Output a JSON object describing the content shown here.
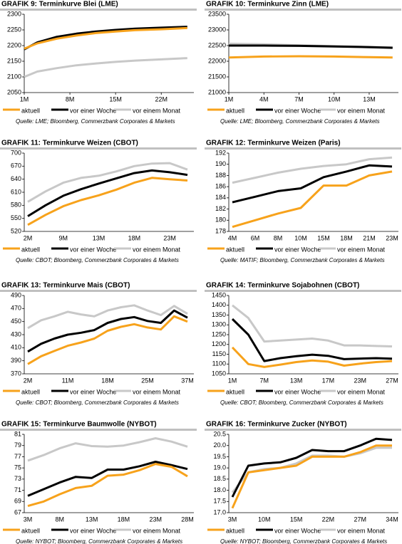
{
  "chart_data": [
    {
      "type": "line",
      "title": "GRAFIK 9: Terminkurve Blei (LME)",
      "source": "Quelle: LME; Bloomberg, Commerzbank Corporates & Markets",
      "x": [
        1,
        3,
        6,
        9,
        12,
        15,
        18,
        22,
        26
      ],
      "xlim": [
        1,
        27
      ],
      "xticks": [
        {
          "value": 1,
          "label": "1M"
        },
        {
          "value": 8,
          "label": "8M"
        },
        {
          "value": 15,
          "label": "15M"
        },
        {
          "value": 22,
          "label": "22M"
        }
      ],
      "ylim": [
        2050,
        2300
      ],
      "yticks": [
        2050,
        2100,
        2150,
        2200,
        2250,
        2300
      ],
      "series": [
        {
          "name": "aktuell",
          "color": "#f7a21b",
          "values": [
            2190,
            2207,
            2222,
            2232,
            2240,
            2245,
            2249,
            2252,
            2256
          ]
        },
        {
          "name": "vor einer Woche",
          "color": "#000000",
          "values": [
            2188,
            2210,
            2228,
            2238,
            2245,
            2250,
            2254,
            2257,
            2260
          ]
        },
        {
          "name": "vor einem Monat",
          "color": "#c8c8c8",
          "values": [
            2100,
            2117,
            2128,
            2137,
            2143,
            2148,
            2152,
            2156,
            2160
          ]
        }
      ]
    },
    {
      "type": "line",
      "title": "GRAFIK 10: Terminkurve Zinn (LME)",
      "source": "Quelle: LME; Bloomberg, Commerzbank Corporates & Markets",
      "x": [
        1,
        4,
        7,
        10,
        13,
        15
      ],
      "xlim": [
        1,
        15.5
      ],
      "xticks": [
        {
          "value": 1,
          "label": "1M"
        },
        {
          "value": 4,
          "label": "4M"
        },
        {
          "value": 7,
          "label": "7M"
        },
        {
          "value": 10,
          "label": "10M"
        },
        {
          "value": 13,
          "label": "13M"
        }
      ],
      "ylim": [
        21000,
        23500
      ],
      "yticks": [
        21000,
        21500,
        22000,
        22500,
        23000,
        23500
      ],
      "series": [
        {
          "name": "aktuell",
          "color": "#f7a21b",
          "values": [
            22120,
            22150,
            22160,
            22150,
            22130,
            22120
          ]
        },
        {
          "name": "vor einer Woche",
          "color": "#000000",
          "values": [
            22500,
            22500,
            22490,
            22470,
            22450,
            22430
          ]
        },
        {
          "name": "vor einem Monat",
          "color": "#c8c8c8",
          "values": [
            22560,
            22540,
            22510,
            22480,
            22460,
            22440
          ]
        }
      ]
    },
    {
      "type": "line",
      "title": "GRAFIK 11: Terminkurve Weizen (CBOT)",
      "source": "Quelle: CBOT; Bloomberg, Commerzbank Corporates & Markets",
      "categories": [
        "2M",
        null,
        "9M",
        null,
        "13M",
        null,
        "18M",
        null,
        "23M",
        null
      ],
      "ylim": [
        520,
        700
      ],
      "yticks": [
        520,
        550,
        580,
        610,
        640,
        670,
        700
      ],
      "series": [
        {
          "name": "aktuell",
          "color": "#f7a21b",
          "values": [
            535,
            558,
            578,
            592,
            603,
            616,
            632,
            643,
            640,
            637
          ]
        },
        {
          "name": "vor einer Woche",
          "color": "#000000",
          "values": [
            555,
            580,
            602,
            617,
            630,
            642,
            654,
            660,
            656,
            650
          ]
        },
        {
          "name": "vor einem Monat",
          "color": "#c8c8c8",
          "values": [
            588,
            612,
            632,
            643,
            648,
            658,
            670,
            676,
            677,
            662
          ]
        }
      ]
    },
    {
      "type": "line",
      "title": "GRAFIK 12: Terminkurve Weizen (Paris)",
      "source": "Quelle: MATIF; Bloomberg, Commerzbank Corporates & Markets",
      "categories": [
        "4M",
        "6M",
        "8M",
        "10M",
        "15M",
        "18M",
        "21M",
        "23M"
      ],
      "ylim": [
        178,
        192
      ],
      "yticks": [
        178,
        180,
        182,
        184,
        186,
        188,
        190,
        192
      ],
      "series": [
        {
          "name": "aktuell",
          "color": "#f7a21b",
          "values": [
            178.8,
            180,
            181.2,
            182.2,
            186.2,
            186.2,
            188,
            188.7
          ]
        },
        {
          "name": "vor einer Woche",
          "color": "#000000",
          "values": [
            183.2,
            184.2,
            185.2,
            185.7,
            187.7,
            188.7,
            189.8,
            189.6
          ]
        },
        {
          "name": "vor einem Monat",
          "color": "#c8c8c8",
          "values": [
            186.7,
            187.6,
            188.5,
            189.2,
            189.7,
            190,
            190.9,
            191.2
          ]
        }
      ]
    },
    {
      "type": "line",
      "title": "GRAFIK 13:  Terminkurve Mais (CBOT)",
      "source": "Quelle: CBOT; Bloomberg, Commerzbank Corporates & Markets",
      "categories": [
        "2M",
        null,
        null,
        "11M",
        null,
        null,
        "18M",
        null,
        null,
        "25M",
        null,
        null,
        "37M"
      ],
      "ylim": [
        370,
        490
      ],
      "yticks": [
        370,
        390,
        410,
        430,
        450,
        470,
        490
      ],
      "series": [
        {
          "name": "aktuell",
          "color": "#f7a21b",
          "values": [
            385,
            397,
            405,
            413,
            418,
            424,
            436,
            442,
            446,
            441,
            438,
            458,
            450
          ]
        },
        {
          "name": "vor einer Woche",
          "color": "#000000",
          "values": [
            404,
            416,
            424,
            430,
            433,
            437,
            448,
            454,
            457,
            451,
            448,
            467,
            456
          ]
        },
        {
          "name": "vor einem Monat",
          "color": "#c8c8c8",
          "values": [
            440,
            452,
            458,
            465,
            461,
            458,
            467,
            472,
            475,
            467,
            460,
            474,
            462
          ]
        }
      ]
    },
    {
      "type": "line",
      "title": "GRAFIK 14: Terminkurve Sojabohnen (CBOT)",
      "source": "Quelle: CBOT; Bloomberg, Commerzbank Corporates & Markets",
      "categories": [
        "1M",
        null,
        "7M",
        null,
        "13M",
        null,
        "17M",
        null,
        "23M",
        null,
        "27M"
      ],
      "ylim": [
        1050,
        1450
      ],
      "yticks": [
        1050,
        1100,
        1150,
        1200,
        1250,
        1300,
        1350,
        1400,
        1450
      ],
      "series": [
        {
          "name": "aktuell",
          "color": "#f7a21b",
          "values": [
            1185,
            1100,
            1085,
            1097,
            1110,
            1118,
            1112,
            1092,
            1102,
            1110,
            1115
          ]
        },
        {
          "name": "vor einer Woche",
          "color": "#000000",
          "values": [
            1330,
            1250,
            1115,
            1130,
            1140,
            1148,
            1142,
            1125,
            1128,
            1130,
            1127
          ]
        },
        {
          "name": "vor einem Monat",
          "color": "#c8c8c8",
          "values": [
            1400,
            1335,
            1215,
            1220,
            1225,
            1230,
            1220,
            1195,
            1195,
            1192,
            1190
          ]
        }
      ]
    },
    {
      "type": "line",
      "title": "GRAFIK 15: Terminkurve Baumwolle (NYBOT)",
      "source": "Quelle: NYBOT; Bloomberg, Commerzbank Corporates & Markets",
      "categories": [
        "3M",
        null,
        "8M",
        null,
        "13M",
        null,
        "18M",
        null,
        "23M",
        null,
        "28M"
      ],
      "ylim": [
        67,
        81
      ],
      "yticks": [
        67,
        69,
        71,
        73,
        75,
        77,
        79,
        81
      ],
      "series": [
        {
          "name": "aktuell",
          "color": "#f7a21b",
          "values": [
            68.2,
            69,
            70.3,
            71.4,
            71.8,
            73.6,
            73.8,
            74.6,
            75.7,
            75.2,
            73.5
          ]
        },
        {
          "name": "vor einer Woche",
          "color": "#000000",
          "values": [
            70,
            71.2,
            72.4,
            73.4,
            73.2,
            74.7,
            74.7,
            75.3,
            76.1,
            75.5,
            74.8
          ]
        },
        {
          "name": "vor einem Monat",
          "color": "#c8c8c8",
          "values": [
            76.3,
            77.3,
            78.5,
            79.4,
            78.9,
            78.8,
            79,
            79.6,
            80.3,
            79.7,
            78.8
          ]
        }
      ]
    },
    {
      "type": "line",
      "title": "GRAFIK 16: Terminkurve Zucker (NYBOT)",
      "source": "Quelle: NYBOT; Bloomberg, Commerzbank Corporates & Markets",
      "categories": [
        "3M",
        null,
        "10M",
        null,
        "15M",
        null,
        "22M",
        null,
        "27M",
        null,
        "34M"
      ],
      "ylim": [
        17,
        20.5
      ],
      "yticks": [
        {
          "value": 17,
          "label": "17.0"
        },
        {
          "value": 17.5,
          "label": "17.5"
        },
        {
          "value": 18,
          "label": "18.0"
        },
        {
          "value": 18.5,
          "label": "18.5"
        },
        {
          "value": 19,
          "label": "19.0"
        },
        {
          "value": 19.5,
          "label": "19.5"
        },
        {
          "value": 20,
          "label": "20.0"
        },
        {
          "value": 20.5,
          "label": "20.5"
        }
      ],
      "series": [
        {
          "name": "aktuell",
          "color": "#f7a21b",
          "values": [
            17.2,
            18.8,
            18.9,
            19,
            19.1,
            19.5,
            19.5,
            19.5,
            19.7,
            20,
            20
          ]
        },
        {
          "name": "vor einer Woche",
          "color": "#000000",
          "values": [
            17.7,
            19.1,
            19.2,
            19.25,
            19.45,
            19.8,
            19.75,
            19.75,
            20,
            20.3,
            20.25
          ]
        },
        {
          "name": "vor einem Monat",
          "color": "#c8c8c8",
          "values": [
            17.9,
            18.8,
            18.95,
            19,
            19.2,
            19.55,
            19.55,
            19.5,
            19.65,
            19.9,
            19.9
          ]
        }
      ]
    }
  ]
}
